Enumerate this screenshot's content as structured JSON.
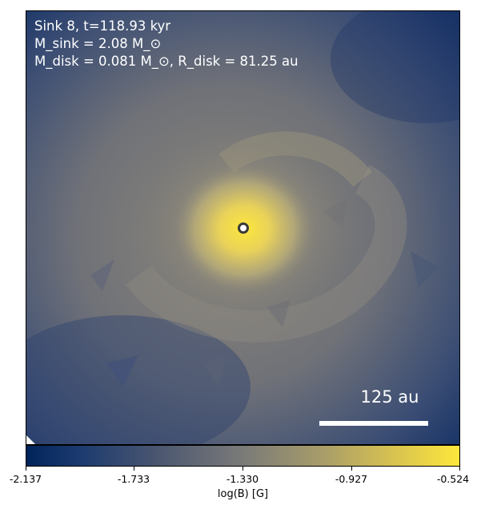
{
  "annotation": {
    "line1": "Sink 8, t=118.93 kyr",
    "line2": "M_sink = 2.08 M_⊙",
    "line3": "M_disk = 0.081 M_⊙, R_disk = 81.25 au"
  },
  "scale_bar": {
    "label": "125 au"
  },
  "colorbar": {
    "ticks": [
      "-2.137",
      "-1.733",
      "-1.330",
      "-0.927",
      "-0.524"
    ],
    "label": "log(B) [G]"
  },
  "colors": {
    "low": "#00245a",
    "mid": "#7a7a78",
    "high": "#fde73c"
  }
}
